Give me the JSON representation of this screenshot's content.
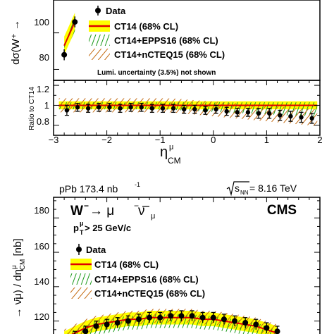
{
  "chart_data": [
    {
      "type": "scatter",
      "panel": "W+ cross section (upper, cropped)",
      "ylabel": "dσ(W⁺ →",
      "y_ticks": [
        "100",
        "80"
      ],
      "legend": [
        "Data",
        "CT14 (68% CL)",
        "CT14+EPPS16 (68% CL)",
        "CT14+nCTEQ15 (68% CL)"
      ],
      "note": "Lumi. uncertainty (3.5%) not shown",
      "ylim": [
        74,
        118
      ],
      "x": [
        -2.8,
        -2.6
      ],
      "data": [
        88,
        106
      ],
      "ct14": [
        93,
        106
      ],
      "epps16": [
        93,
        106
      ],
      "ncteq15": [
        93,
        106
      ]
    },
    {
      "type": "scatter",
      "panel": "W+ ratio",
      "ylabel": "Ratio to CT14",
      "xlabel_main": "η",
      "xlabel_sup": "μ",
      "xlabel_sub": "CM",
      "x_ticks": [
        "−3",
        "−2",
        "−1",
        "0",
        "1",
        "2"
      ],
      "y_ticks": [
        "1.2",
        "1",
        "0.8"
      ],
      "xlim": [
        -3,
        2
      ],
      "ylim": [
        0.7,
        1.25
      ],
      "x": [
        -2.75,
        -2.55,
        -2.35,
        -2.15,
        -1.95,
        -1.75,
        -1.55,
        -1.35,
        -1.15,
        -0.95,
        -0.75,
        -0.55,
        -0.35,
        -0.15,
        0.05,
        0.25,
        0.45,
        0.65,
        0.85,
        1.05,
        1.25,
        1.45,
        1.65,
        1.85
      ],
      "ratio": [
        0.95,
        0.98,
        0.97,
        0.98,
        0.98,
        0.97,
        0.98,
        0.98,
        0.97,
        0.97,
        0.97,
        0.96,
        0.96,
        0.95,
        0.96,
        0.94,
        0.93,
        0.93,
        0.92,
        0.92,
        0.9,
        0.89,
        0.88,
        0.87
      ],
      "ratio_err": [
        0.05,
        0.04,
        0.04,
        0.04,
        0.04,
        0.04,
        0.04,
        0.04,
        0.04,
        0.04,
        0.04,
        0.04,
        0.04,
        0.04,
        0.04,
        0.04,
        0.04,
        0.04,
        0.05,
        0.05,
        0.05,
        0.05,
        0.05,
        0.05
      ]
    },
    {
      "type": "scatter",
      "panel": "W- cross section (lower, cropped)",
      "top_left": "pPb 173.4 nb",
      "top_left_sup": "-1",
      "top_right": "s",
      "top_right_sub": "NN",
      "top_right_value": " = 8.16 TeV",
      "process_main": "W",
      "process_arrow": " → μ",
      "process_rest": " ν",
      "process_sub": "μ",
      "experiment": "CMS",
      "cut_main": "p",
      "cut_sup": "μ",
      "cut_sub": "T",
      "cut_value": " > 25 GeV/c",
      "ylabel": "→ ν̄μ) / dη",
      "ylabel_sup": "μ",
      "ylabel_sub": "CM",
      "ylabel_unit": " [nb]",
      "y_ticks": [
        "180",
        "160",
        "140",
        "120"
      ],
      "ylim": [
        110,
        192
      ],
      "legend": [
        "Data",
        "CT14 (68% CL)",
        "CT14+EPPS16 (68% CL)",
        "CT14+nCTEQ15 (68% CL)"
      ],
      "x": [
        -2.8,
        -2.6,
        -2.4,
        -2.2,
        -2.0,
        -1.8,
        -1.6,
        -1.4,
        -1.2,
        -1.0,
        -0.8,
        -0.6,
        -0.4,
        -0.2,
        0.0,
        0.2,
        0.4,
        0.6,
        0.8,
        1.0,
        1.2
      ],
      "data": [
        108,
        111,
        114,
        117,
        118,
        119,
        120,
        121,
        122,
        122,
        123,
        123,
        123,
        122,
        122,
        121,
        120,
        119,
        118,
        116,
        114
      ],
      "ct14": [
        110,
        113,
        116,
        118,
        119,
        120,
        121,
        121,
        122,
        122,
        122,
        122,
        122,
        121,
        121,
        120,
        119,
        118,
        117,
        115,
        113
      ]
    }
  ]
}
